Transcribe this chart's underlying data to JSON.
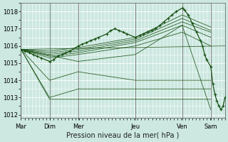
{
  "xlabel": "Pression niveau de la mer( hPa )",
  "bg_color": "#cce8e0",
  "grid_color": "#b8dcd4",
  "line_color": "#1a5216",
  "ylim": [
    1011.8,
    1018.5
  ],
  "yticks": [
    1012,
    1013,
    1014,
    1015,
    1016,
    1017,
    1018
  ],
  "day_labels": [
    "Mar",
    "Dim",
    "Mer",
    "Jeu",
    "Ven",
    "Sam"
  ],
  "day_positions": [
    0,
    0.14,
    0.28,
    0.56,
    0.79,
    0.93
  ],
  "xlim": [
    0.0,
    1.0
  ],
  "fan_lines": [
    {
      "x": [
        0.0,
        1.0
      ],
      "y": [
        1015.8,
        1016.0
      ]
    },
    {
      "x": [
        0.0,
        0.28,
        0.56,
        0.79,
        0.93
      ],
      "y": [
        1015.8,
        1015.1,
        1015.5,
        1017.2,
        1012.3
      ]
    },
    {
      "x": [
        0.0,
        0.14,
        0.28,
        0.56,
        0.79,
        0.93
      ],
      "y": [
        1015.8,
        1013.0,
        1013.5,
        1013.5,
        1013.5,
        1013.5
      ]
    },
    {
      "x": [
        0.0,
        0.14,
        0.28,
        0.56,
        0.79,
        0.93
      ],
      "y": [
        1015.8,
        1012.9,
        1012.9,
        1012.9,
        1012.9,
        1012.9
      ]
    },
    {
      "x": [
        0.0,
        0.14,
        0.28,
        0.56,
        0.79,
        0.93
      ],
      "y": [
        1015.8,
        1014.0,
        1014.5,
        1014.0,
        1014.0,
        1014.0
      ]
    },
    {
      "x": [
        0.0,
        0.14,
        0.28,
        0.56,
        0.79,
        0.93
      ],
      "y": [
        1015.8,
        1015.3,
        1015.5,
        1016.0,
        1016.8,
        1016.0
      ]
    },
    {
      "x": [
        0.0,
        0.14,
        0.28,
        0.56,
        0.79,
        0.93
      ],
      "y": [
        1015.8,
        1015.4,
        1015.6,
        1016.2,
        1017.2,
        1016.5
      ]
    },
    {
      "x": [
        0.0,
        0.14,
        0.28,
        0.56,
        0.79,
        0.93
      ],
      "y": [
        1015.8,
        1015.5,
        1015.7,
        1016.3,
        1017.4,
        1016.8
      ]
    },
    {
      "x": [
        0.0,
        0.14,
        0.28,
        0.56,
        0.79,
        0.93
      ],
      "y": [
        1015.8,
        1015.6,
        1015.8,
        1016.4,
        1017.6,
        1016.9
      ]
    },
    {
      "x": [
        0.0,
        0.14,
        0.28,
        0.56,
        0.79,
        0.93
      ],
      "y": [
        1015.8,
        1015.7,
        1015.9,
        1016.5,
        1017.8,
        1017.1
      ]
    }
  ],
  "main_x": [
    0.0,
    0.02,
    0.04,
    0.06,
    0.08,
    0.1,
    0.14,
    0.16,
    0.18,
    0.2,
    0.22,
    0.24,
    0.28,
    0.3,
    0.32,
    0.34,
    0.36,
    0.38,
    0.42,
    0.44,
    0.46,
    0.48,
    0.5,
    0.52,
    0.56,
    0.58,
    0.6,
    0.62,
    0.64,
    0.66,
    0.68,
    0.7,
    0.72,
    0.74,
    0.76,
    0.79,
    0.8,
    0.82,
    0.84,
    0.86,
    0.88,
    0.89,
    0.9,
    0.91,
    0.93,
    0.94,
    0.95,
    0.96,
    0.97,
    0.98,
    0.99,
    1.0
  ],
  "main_y": [
    1015.8,
    1015.7,
    1015.6,
    1015.5,
    1015.4,
    1015.3,
    1015.1,
    1015.2,
    1015.4,
    1015.5,
    1015.6,
    1015.7,
    1016.0,
    1016.1,
    1016.2,
    1016.3,
    1016.4,
    1016.5,
    1016.7,
    1016.9,
    1017.0,
    1016.9,
    1016.8,
    1016.7,
    1016.5,
    1016.6,
    1016.7,
    1016.8,
    1016.9,
    1017.0,
    1017.2,
    1017.4,
    1017.6,
    1017.8,
    1018.0,
    1018.2,
    1018.1,
    1017.8,
    1017.3,
    1016.8,
    1016.3,
    1016.0,
    1015.5,
    1015.2,
    1014.8,
    1013.8,
    1013.2,
    1012.8,
    1012.5,
    1012.3,
    1012.5,
    1013.0
  ]
}
